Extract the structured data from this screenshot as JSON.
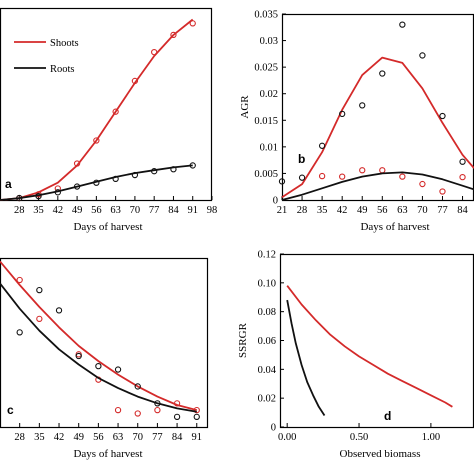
{
  "colors": {
    "shoots": "#d42a2a",
    "roots": "#111111"
  },
  "chart_data": [
    {
      "id": "a",
      "type": "line",
      "panel_label": "a",
      "xlabel": "Days of harvest",
      "ylabel": "",
      "x_ticks": [
        "28",
        "35",
        "42",
        "49",
        "56",
        "63",
        "70",
        "77",
        "84",
        "91",
        "98"
      ],
      "xlim": [
        21,
        98
      ],
      "ylim": [
        0,
        1
      ],
      "legend": {
        "placement": "top-left",
        "entries": [
          "Shoots",
          "Roots"
        ]
      },
      "series": [
        {
          "name": "Shoots",
          "color": "#d42a2a",
          "points_x": [
            28,
            35,
            42,
            49,
            56,
            63,
            70,
            77,
            84,
            91
          ],
          "points_y": [
            0.01,
            0.03,
            0.06,
            0.19,
            0.31,
            0.46,
            0.62,
            0.77,
            0.86,
            0.92
          ],
          "fit_x": [
            21,
            28,
            35,
            42,
            49,
            56,
            63,
            70,
            77,
            84,
            91
          ],
          "fit_y": [
            0.0,
            0.01,
            0.04,
            0.09,
            0.18,
            0.31,
            0.46,
            0.61,
            0.75,
            0.86,
            0.94
          ]
        },
        {
          "name": "Roots",
          "color": "#111111",
          "points_x": [
            28,
            35,
            42,
            49,
            56,
            63,
            70,
            77,
            84,
            91
          ],
          "points_y": [
            0.01,
            0.02,
            0.04,
            0.07,
            0.09,
            0.11,
            0.13,
            0.15,
            0.16,
            0.18
          ],
          "fit_x": [
            21,
            28,
            35,
            42,
            49,
            56,
            63,
            70,
            77,
            84,
            91
          ],
          "fit_y": [
            0.0,
            0.01,
            0.025,
            0.045,
            0.07,
            0.095,
            0.12,
            0.14,
            0.155,
            0.17,
            0.18
          ]
        }
      ]
    },
    {
      "id": "b",
      "type": "line",
      "panel_label": "b",
      "xlabel": "Days of harvest",
      "ylabel": "AGR",
      "x_ticks": [
        "21",
        "28",
        "35",
        "42",
        "49",
        "56",
        "63",
        "70",
        "77",
        "84"
      ],
      "y_ticks": [
        "0",
        "0.005",
        "0.01",
        "0.015",
        "0.02",
        "0.025",
        "0.03",
        "0.035"
      ],
      "xlim": [
        21,
        88
      ],
      "ylim": [
        0,
        0.035
      ],
      "series": [
        {
          "name": "Shoots",
          "color": "#d42a2a",
          "points_x": [
            35,
            42,
            49,
            56,
            63,
            70,
            77,
            84
          ],
          "points_y": [
            0.0045,
            0.0044,
            0.0056,
            0.0056,
            0.0044,
            0.003,
            0.0016,
            0.0043
          ],
          "fit_x": [
            21,
            28,
            35,
            42,
            49,
            56,
            63,
            70,
            77,
            84,
            88
          ],
          "fit_y": [
            0.0005,
            0.003,
            0.009,
            0.017,
            0.0235,
            0.0268,
            0.0258,
            0.021,
            0.0145,
            0.0085,
            0.006
          ]
        },
        {
          "name": "Roots",
          "color": "#111111",
          "points_x": [
            21,
            28,
            35,
            42,
            49,
            56,
            63,
            70,
            77,
            84
          ],
          "points_y": [
            0.0035,
            0.0042,
            0.0102,
            0.0162,
            0.0178,
            0.0238,
            0.033,
            0.0272,
            0.0158,
            0.0072
          ],
          "fit_x": [
            21,
            28,
            35,
            42,
            49,
            56,
            63,
            70,
            77,
            84,
            88
          ],
          "fit_y": [
            0.0,
            0.001,
            0.0022,
            0.0034,
            0.0044,
            0.005,
            0.0052,
            0.0048,
            0.0039,
            0.0027,
            0.002
          ]
        }
      ]
    },
    {
      "id": "c",
      "type": "line",
      "panel_label": "c",
      "xlabel": "Days of harvest",
      "ylabel": "",
      "x_ticks": [
        "28",
        "35",
        "42",
        "49",
        "56",
        "63",
        "70",
        "77",
        "84",
        "91"
      ],
      "xlim": [
        21,
        95
      ],
      "ylim": [
        0,
        1
      ],
      "series": [
        {
          "name": "Shoots",
          "color": "#d42a2a",
          "points_x": [
            28,
            35,
            49,
            56,
            63,
            70,
            77,
            84,
            91
          ],
          "points_y": [
            0.87,
            0.64,
            0.43,
            0.28,
            0.1,
            0.08,
            0.1,
            0.14,
            0.1
          ],
          "fit_x": [
            21,
            28,
            35,
            42,
            49,
            56,
            63,
            70,
            77,
            84,
            91
          ],
          "fit_y": [
            0.98,
            0.84,
            0.71,
            0.59,
            0.48,
            0.39,
            0.31,
            0.24,
            0.18,
            0.13,
            0.1
          ]
        },
        {
          "name": "Roots",
          "color": "#111111",
          "points_x": [
            28,
            35,
            42,
            49,
            56,
            63,
            70,
            77,
            84,
            91
          ],
          "points_y": [
            0.56,
            0.81,
            0.69,
            0.42,
            0.36,
            0.34,
            0.24,
            0.14,
            0.06,
            0.06
          ],
          "fit_x": [
            21,
            28,
            35,
            42,
            49,
            56,
            63,
            70,
            77,
            84,
            91
          ],
          "fit_y": [
            0.85,
            0.7,
            0.57,
            0.46,
            0.37,
            0.29,
            0.23,
            0.18,
            0.14,
            0.11,
            0.09
          ]
        }
      ]
    },
    {
      "id": "d",
      "type": "line",
      "panel_label": "d",
      "xlabel": "Observed biomass",
      "ylabel": "SSRGR",
      "x_ticks": [
        "0.00",
        "0.50",
        "1.00"
      ],
      "y_ticks": [
        "0",
        "0.02",
        "0.04",
        "0.06",
        "0.08",
        "0.10",
        "0.12"
      ],
      "xlim": [
        -0.05,
        1.3
      ],
      "ylim": [
        0,
        0.12
      ],
      "series": [
        {
          "name": "Shoots",
          "color": "#d42a2a",
          "fit_x": [
            0.0,
            0.1,
            0.2,
            0.3,
            0.4,
            0.5,
            0.6,
            0.7,
            0.8,
            0.9,
            1.0,
            1.1,
            1.15
          ],
          "fit_y": [
            0.098,
            0.085,
            0.074,
            0.064,
            0.056,
            0.049,
            0.043,
            0.037,
            0.032,
            0.027,
            0.022,
            0.017,
            0.014
          ]
        },
        {
          "name": "Roots",
          "color": "#111111",
          "fit_x": [
            0.0,
            0.03,
            0.06,
            0.1,
            0.14,
            0.18,
            0.22,
            0.26
          ],
          "fit_y": [
            0.088,
            0.072,
            0.058,
            0.043,
            0.031,
            0.022,
            0.014,
            0.008
          ]
        }
      ]
    }
  ]
}
